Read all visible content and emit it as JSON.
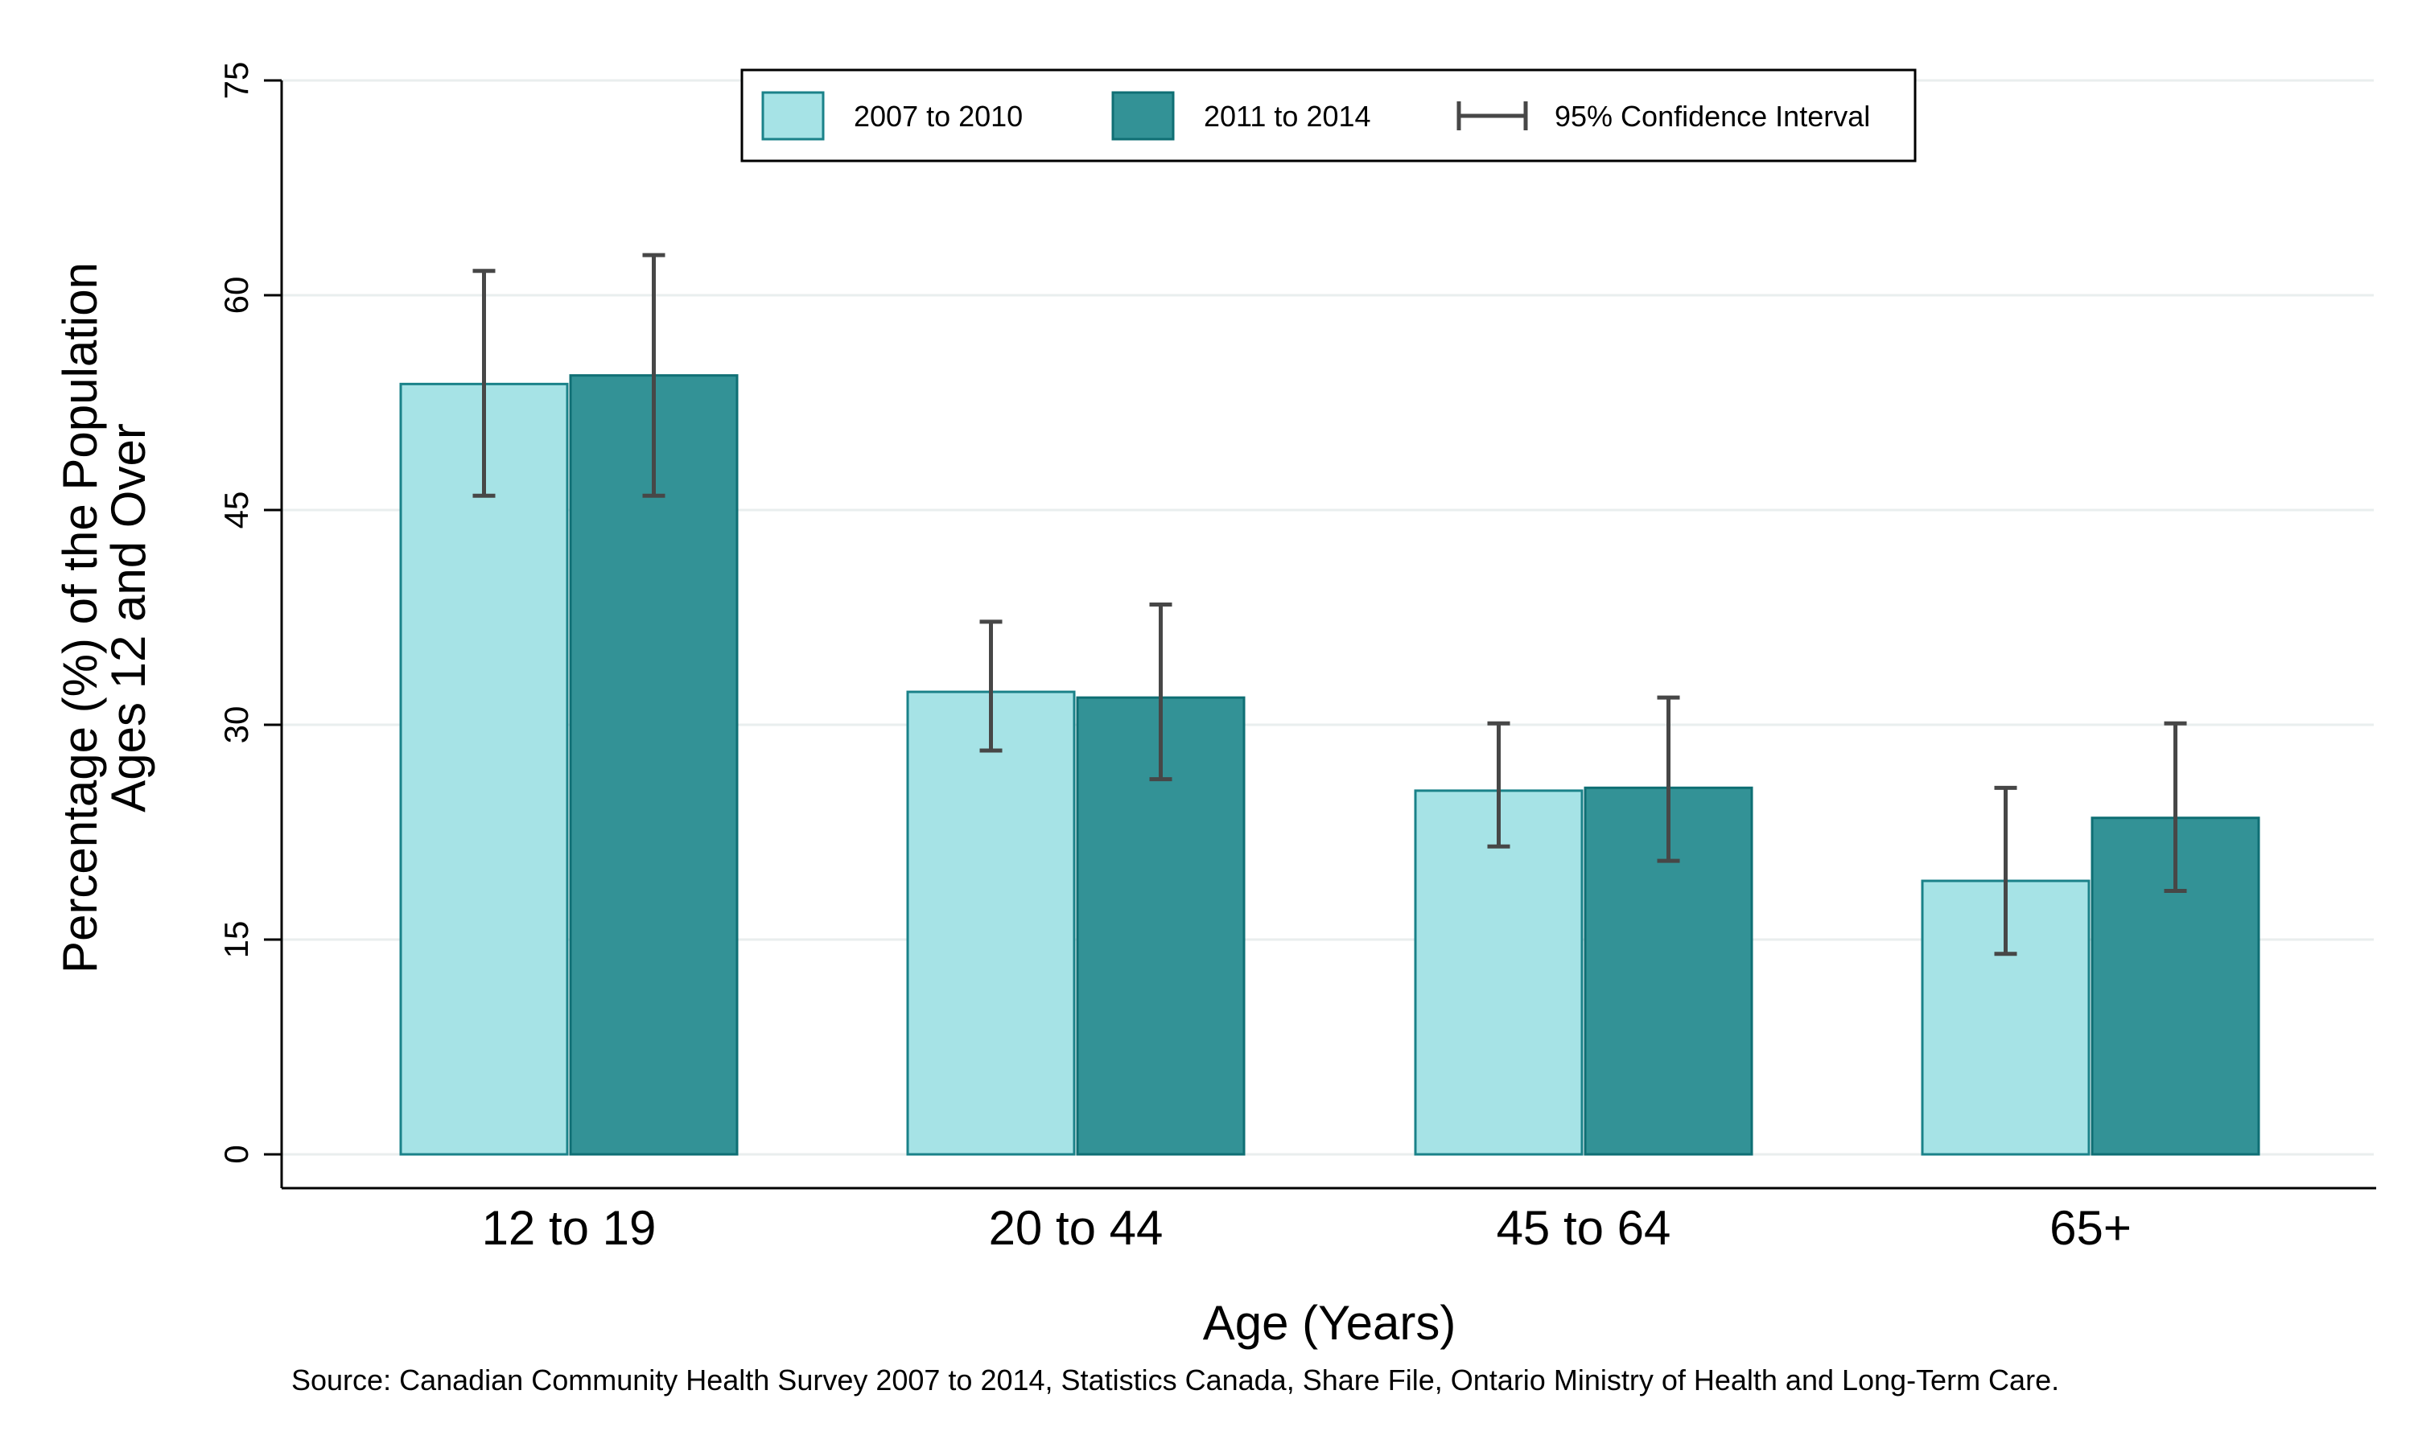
{
  "chart_data": {
    "type": "bar",
    "xlabel": "Age (Years)",
    "ylabel_lines": [
      "Percentage (%) of the Population",
      "Ages 12 and Over"
    ],
    "categories": [
      "12 to 19",
      "20 to 44",
      "45 to 64",
      "65+"
    ],
    "ylim": [
      0,
      75
    ],
    "yticks": [
      0,
      15,
      30,
      45,
      60,
      75
    ],
    "grid": true,
    "legend_position": "top-center",
    "series": [
      {
        "name": "2007 to 2010",
        "color": "#a6e3e6",
        "stroke": "#1a8289",
        "values": [
          53.8,
          32.3,
          25.4,
          19.1
        ],
        "ci_low": [
          46.0,
          28.2,
          21.5,
          14.0
        ],
        "ci_high": [
          61.7,
          37.2,
          30.1,
          25.6
        ]
      },
      {
        "name": "2011 to 2014",
        "color": "#339296",
        "stroke": "#0f6f74",
        "values": [
          54.4,
          31.9,
          25.6,
          23.5
        ],
        "ci_low": [
          46.0,
          26.2,
          20.5,
          18.4
        ],
        "ci_high": [
          62.8,
          38.4,
          31.9,
          30.1
        ]
      }
    ],
    "ci_legend_label": "95% Confidence Interval",
    "source": "Source: Canadian Community Health Survey 2007 to 2014, Statistics Canada, Share File, Ontario Ministry of Health and Long-Term Care."
  }
}
